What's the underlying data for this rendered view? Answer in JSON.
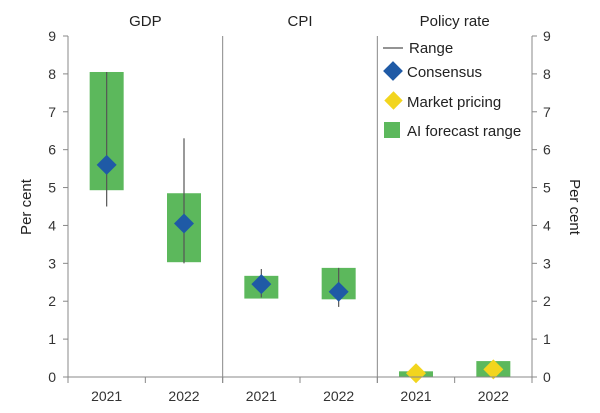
{
  "chart_data": {
    "type": "range",
    "ylabel_left": "Per cent",
    "ylabel_right": "Per cent",
    "ylim": [
      0,
      9
    ],
    "yticks": [
      "0",
      "1",
      "2",
      "3",
      "4",
      "5",
      "6",
      "7",
      "8",
      "9"
    ],
    "legend": {
      "placement": "top-right",
      "range": "Range",
      "consensus": "Consensus",
      "market": "Market pricing",
      "ai_forecast": "AI forecast range"
    },
    "colors": {
      "ai_forecast": "#5cb85c",
      "consensus": "#1f5aa6",
      "market": "#f2d51e",
      "range": "#555555",
      "axis": "#888888"
    },
    "panels": [
      {
        "title": "GDP",
        "points": [
          {
            "x": "2021",
            "range_low": 4.5,
            "range_high": 8.05,
            "ai_low": 4.93,
            "ai_high": 8.05,
            "consensus": 5.6
          },
          {
            "x": "2022",
            "range_low": 3.0,
            "range_high": 6.3,
            "ai_low": 3.03,
            "ai_high": 4.85,
            "consensus": 4.05
          }
        ]
      },
      {
        "title": "CPI",
        "points": [
          {
            "x": "2021",
            "range_low": 2.1,
            "range_high": 2.85,
            "ai_low": 2.07,
            "ai_high": 2.67,
            "consensus": 2.45
          },
          {
            "x": "2022",
            "range_low": 1.85,
            "range_high": 2.88,
            "ai_low": 2.05,
            "ai_high": 2.88,
            "consensus": 2.25
          }
        ]
      },
      {
        "title": "Policy rate",
        "points": [
          {
            "x": "2021",
            "ai_low": 0.0,
            "ai_high": 0.15,
            "market": 0.1
          },
          {
            "x": "2022",
            "ai_low": 0.0,
            "ai_high": 0.42,
            "market": 0.2
          }
        ]
      }
    ]
  }
}
